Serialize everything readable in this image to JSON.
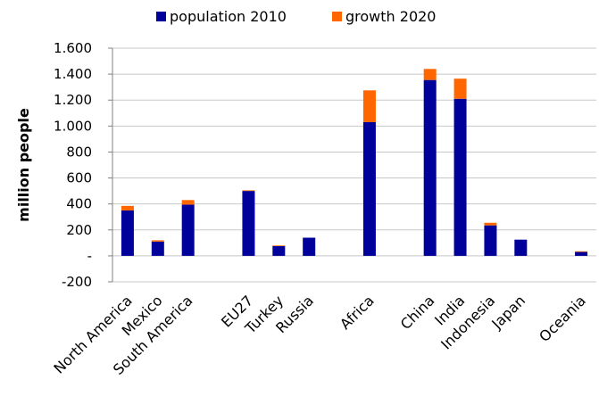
{
  "chart_data": {
    "type": "bar",
    "stacked": true,
    "ylabel": "million people",
    "ylim": [
      -200,
      1600
    ],
    "yticks": [
      {
        "value": 1600,
        "label": "1.600"
      },
      {
        "value": 1400,
        "label": "1.400"
      },
      {
        "value": 1200,
        "label": "1.200"
      },
      {
        "value": 1000,
        "label": "1.000"
      },
      {
        "value": 800,
        "label": "800"
      },
      {
        "value": 600,
        "label": "600"
      },
      {
        "value": 400,
        "label": "400"
      },
      {
        "value": 200,
        "label": "200"
      },
      {
        "value": 0,
        "label": "-"
      },
      {
        "value": -200,
        "label": "-200"
      }
    ],
    "grid": "horizontal",
    "legend_position": "top",
    "categories": [
      "North America",
      "Mexico",
      "South America",
      "",
      "EU27",
      "Turkey",
      "Russia",
      "",
      "Africa",
      "",
      "China",
      "India",
      "Indonesia",
      "Japan",
      "",
      "Oceania"
    ],
    "series": [
      {
        "name": "population 2010",
        "color": "#00009a",
        "values": [
          350,
          110,
          395,
          null,
          500,
          75,
          140,
          null,
          1030,
          null,
          1355,
          1210,
          235,
          125,
          null,
          30
        ]
      },
      {
        "name": "growth 2020",
        "color": "#ff6600",
        "values": [
          35,
          10,
          35,
          null,
          5,
          5,
          0,
          null,
          245,
          null,
          85,
          155,
          20,
          0,
          null,
          5
        ]
      }
    ]
  }
}
